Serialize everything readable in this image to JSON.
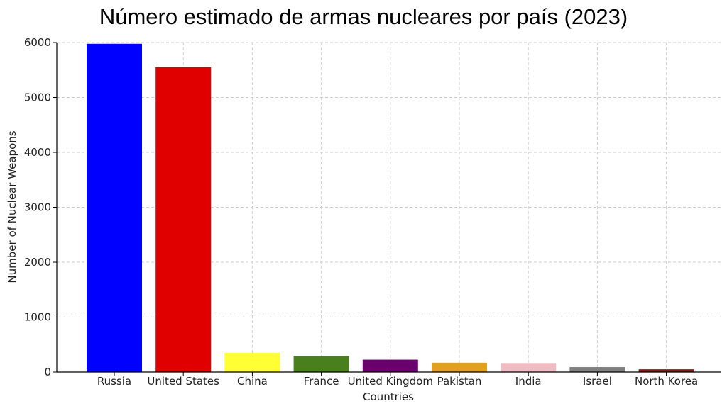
{
  "chart_data": {
    "type": "bar",
    "title": "Número estimado de armas nucleares por país (2023)",
    "xlabel": "Countries",
    "ylabel": "Number of Nuclear Weapons",
    "categories": [
      "Russia",
      "United States",
      "China",
      "France",
      "United Kingdom",
      "Pakistan",
      "India",
      "Israel",
      "North Korea"
    ],
    "values": [
      5977,
      5550,
      350,
      290,
      225,
      170,
      164,
      90,
      50
    ],
    "colors": [
      "#0000ff",
      "#e00000",
      "#ffff33",
      "#4a7f1e",
      "#6a006e",
      "#e0a020",
      "#f0bcc4",
      "#808080",
      "#8a1a1a"
    ],
    "ylim": [
      0,
      6000
    ],
    "yticks": [
      0,
      1000,
      2000,
      3000,
      4000,
      5000,
      6000
    ],
    "grid": true
  }
}
